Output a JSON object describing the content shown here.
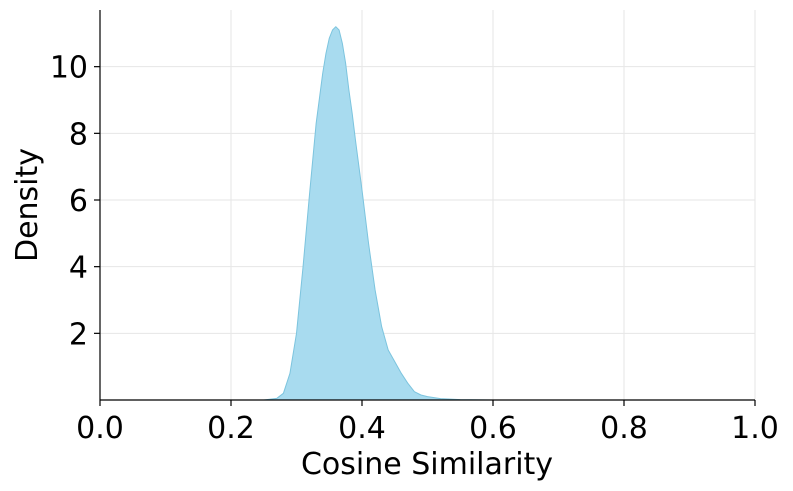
{
  "chart_data": {
    "type": "area",
    "title": "",
    "xlabel": "Cosine Similarity",
    "ylabel": "Density",
    "xlim": [
      0.0,
      1.0
    ],
    "ylim": [
      0.0,
      11.7
    ],
    "x_ticks": [
      0.0,
      0.2,
      0.4,
      0.6,
      0.8,
      1.0
    ],
    "x_tick_labels": [
      "0.0",
      "0.2",
      "0.4",
      "0.6",
      "0.8",
      "1.0"
    ],
    "y_ticks": [
      2,
      4,
      6,
      8,
      10
    ],
    "y_tick_labels": [
      "2",
      "4",
      "6",
      "8",
      "10"
    ],
    "grid": true,
    "legend": "none",
    "colors": {
      "fill": "#a8dbef",
      "stroke": "#7cc4de",
      "grid": "#e6e6e6",
      "axis": "#000000"
    },
    "series": [
      {
        "x": [
          0.25,
          0.27,
          0.28,
          0.29,
          0.3,
          0.31,
          0.32,
          0.33,
          0.34,
          0.345,
          0.35,
          0.355,
          0.36,
          0.365,
          0.37,
          0.375,
          0.38,
          0.385,
          0.39,
          0.4,
          0.41,
          0.42,
          0.43,
          0.44,
          0.45,
          0.46,
          0.47,
          0.48,
          0.49,
          0.5,
          0.52,
          0.55,
          0.6
        ],
        "y": [
          0.0,
          0.05,
          0.2,
          0.8,
          2.0,
          4.0,
          6.2,
          8.3,
          9.8,
          10.4,
          10.85,
          11.1,
          11.2,
          11.1,
          10.7,
          10.1,
          9.3,
          8.6,
          7.8,
          6.3,
          4.7,
          3.3,
          2.2,
          1.5,
          1.15,
          0.8,
          0.5,
          0.25,
          0.15,
          0.1,
          0.04,
          0.01,
          0.0
        ]
      }
    ]
  }
}
